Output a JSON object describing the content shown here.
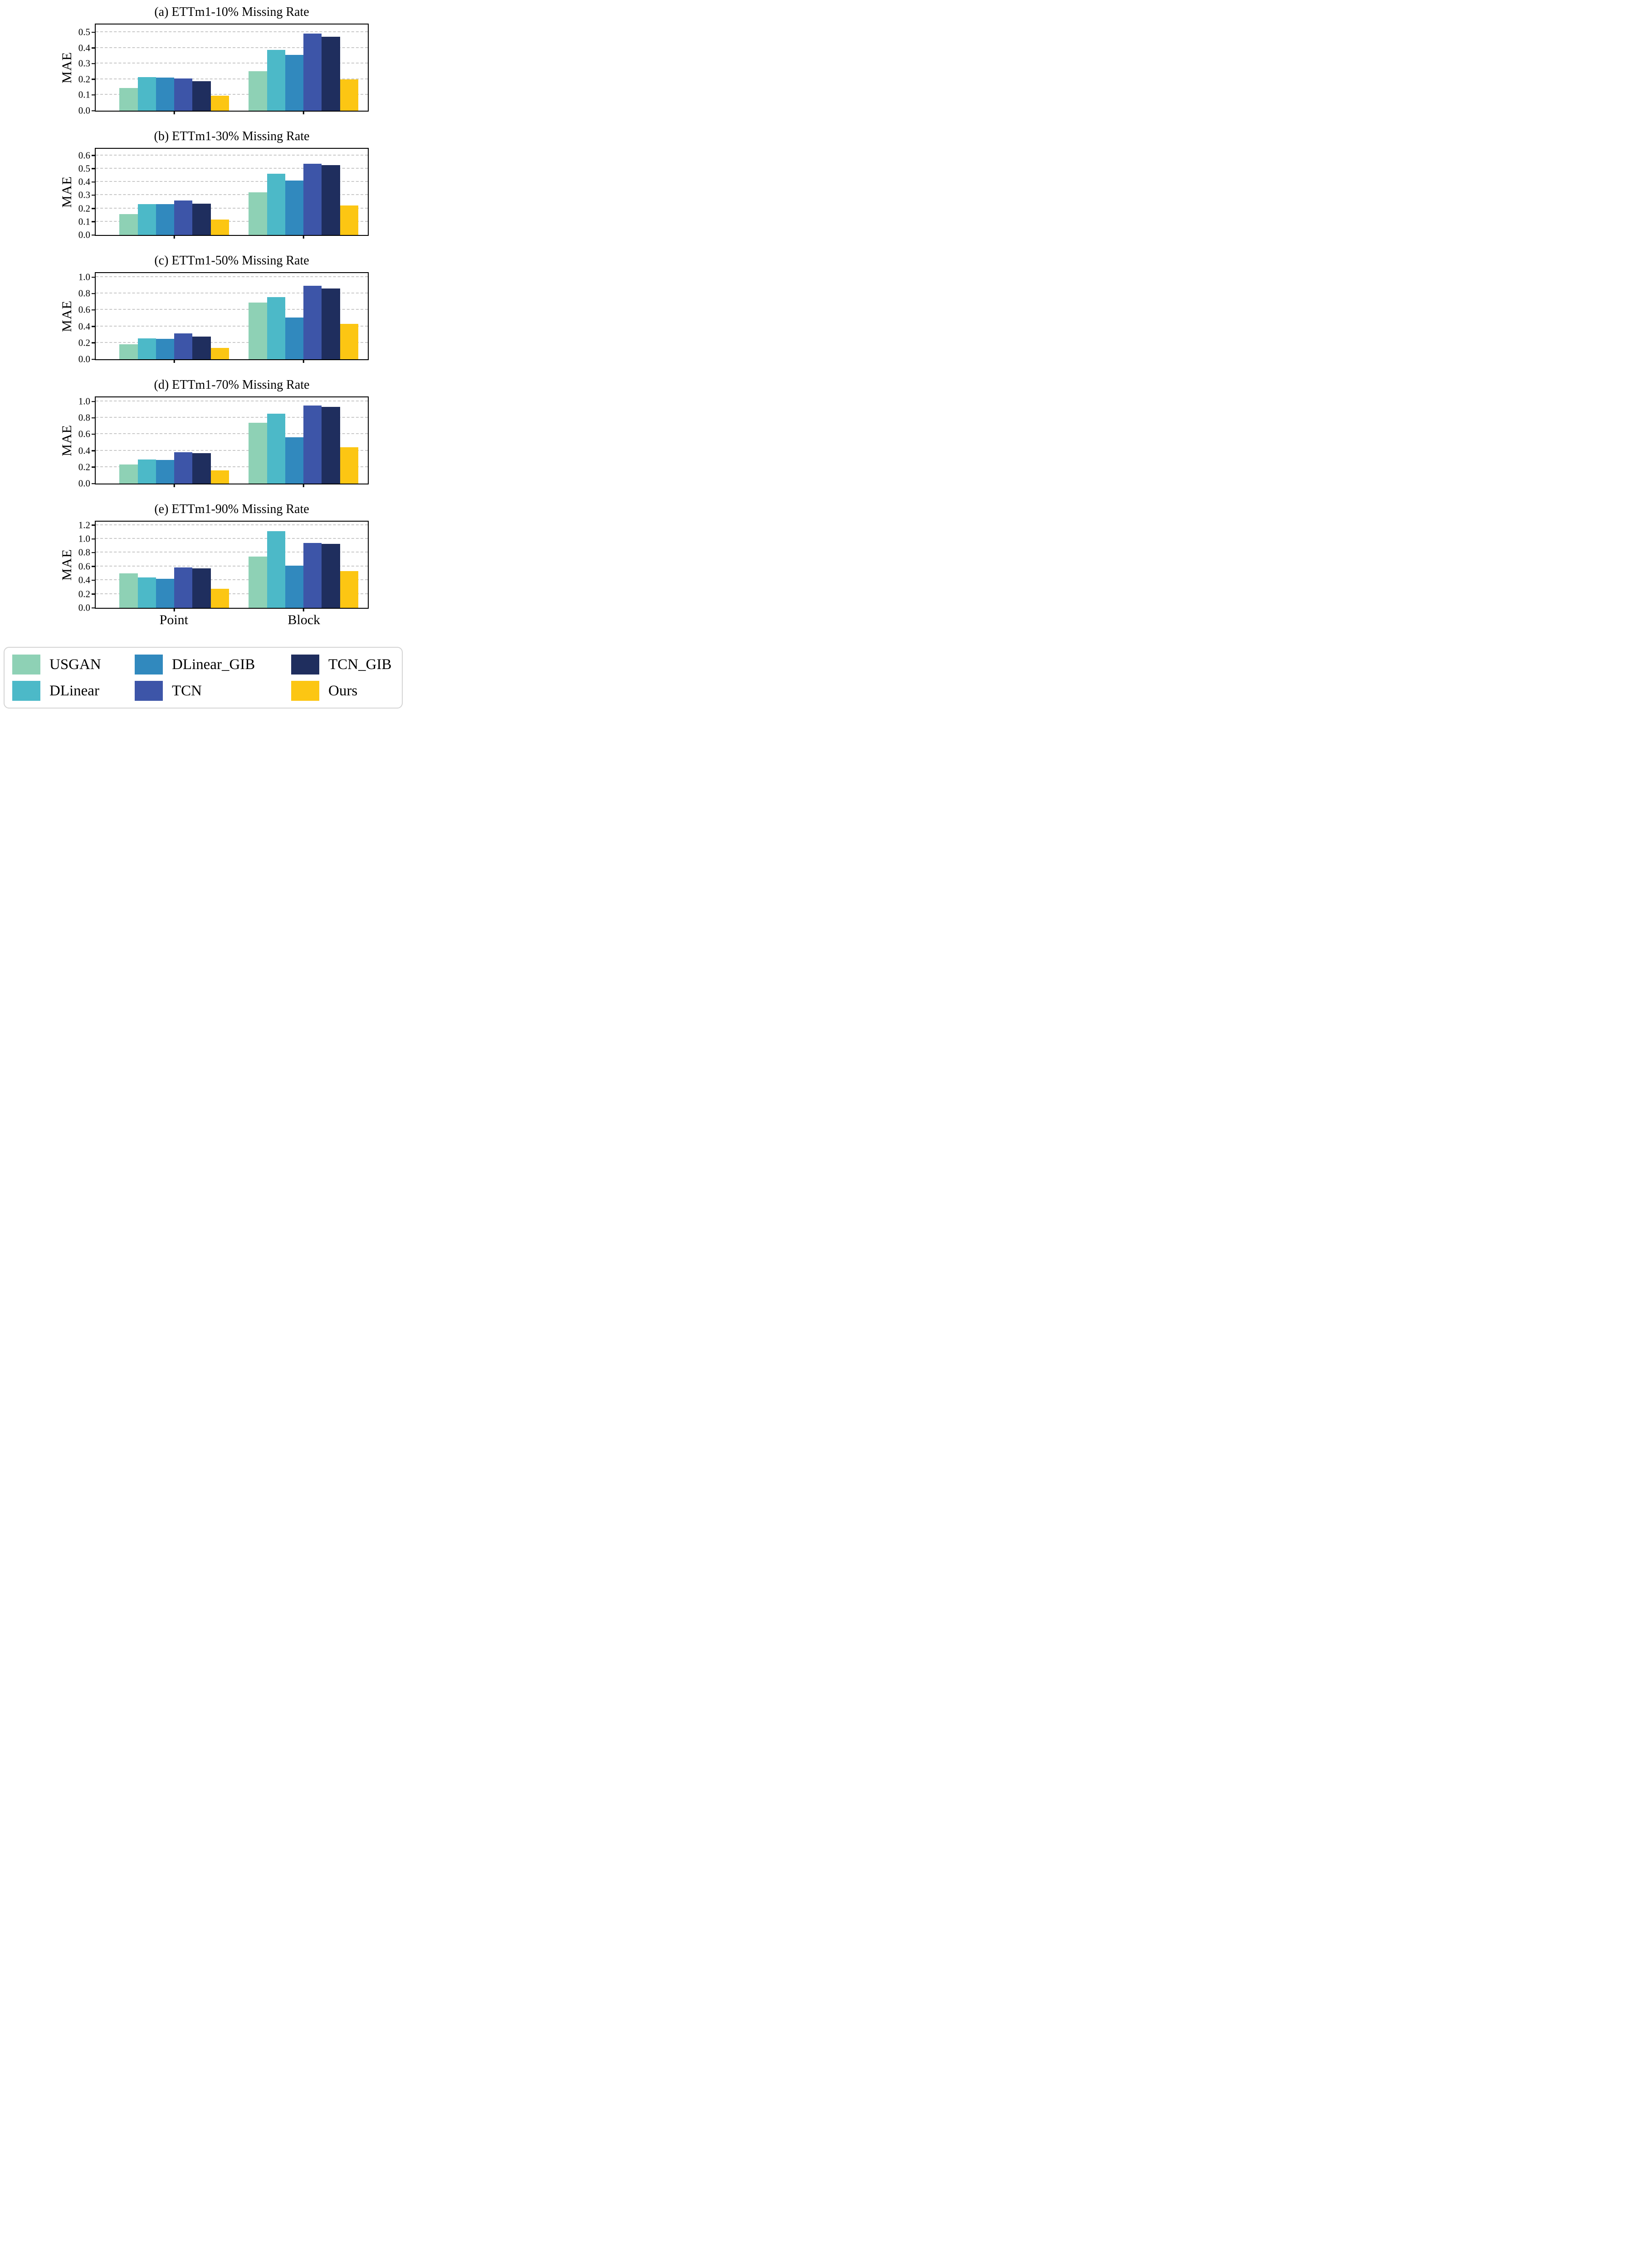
{
  "chart_data": [
    {
      "type": "bar",
      "title": "(a) ETTm1-10% Missing Rate",
      "ylabel": "MAE",
      "categories": [
        "Point",
        "Block"
      ],
      "yticks": [
        "0.0",
        "0.1",
        "0.2",
        "0.3",
        "0.4",
        "0.5"
      ],
      "ytick_values": [
        0,
        0.1,
        0.2,
        0.3,
        0.4,
        0.5
      ],
      "ylim": [
        0,
        0.55
      ],
      "grid": "horizontal-dashed",
      "legend_position": "none",
      "show_xtick_labels": false,
      "series": [
        {
          "name": "USGAN",
          "values": [
            0.145,
            0.252
          ]
        },
        {
          "name": "DLinear",
          "values": [
            0.215,
            0.389
          ]
        },
        {
          "name": "DLinear_GIB",
          "values": [
            0.211,
            0.356
          ]
        },
        {
          "name": "TCN",
          "values": [
            0.206,
            0.492
          ]
        },
        {
          "name": "TCN_GIB",
          "values": [
            0.189,
            0.471
          ]
        },
        {
          "name": "Ours",
          "values": [
            0.097,
            0.2
          ]
        }
      ]
    },
    {
      "type": "bar",
      "title": "(b) ETTm1-30% Missing Rate",
      "ylabel": "MAE",
      "categories": [
        "Point",
        "Block"
      ],
      "yticks": [
        "0.0",
        "0.1",
        "0.2",
        "0.3",
        "0.4",
        "0.5",
        "0.6"
      ],
      "ytick_values": [
        0,
        0.1,
        0.2,
        0.3,
        0.4,
        0.5,
        0.6
      ],
      "ylim": [
        0,
        0.65
      ],
      "grid": "horizontal-dashed",
      "legend_position": "none",
      "show_xtick_labels": false,
      "series": [
        {
          "name": "USGAN",
          "values": [
            0.159,
            0.32
          ]
        },
        {
          "name": "DLinear",
          "values": [
            0.233,
            0.461
          ]
        },
        {
          "name": "DLinear_GIB",
          "values": [
            0.232,
            0.41
          ]
        },
        {
          "name": "TCN",
          "values": [
            0.26,
            0.536
          ]
        },
        {
          "name": "TCN_GIB",
          "values": [
            0.236,
            0.527
          ]
        },
        {
          "name": "Ours",
          "values": [
            0.116,
            0.221
          ]
        }
      ]
    },
    {
      "type": "bar",
      "title": "(c) ETTm1-50% Missing Rate",
      "ylabel": "MAE",
      "categories": [
        "Point",
        "Block"
      ],
      "yticks": [
        "0.0",
        "0.2",
        "0.4",
        "0.6",
        "0.8",
        "1.0"
      ],
      "ytick_values": [
        0,
        0.2,
        0.4,
        0.6,
        0.8,
        1.0
      ],
      "ylim": [
        0,
        1.05
      ],
      "grid": "horizontal-dashed",
      "legend_position": "none",
      "show_xtick_labels": false,
      "series": [
        {
          "name": "USGAN",
          "values": [
            0.181,
            0.693
          ]
        },
        {
          "name": "DLinear",
          "values": [
            0.253,
            0.757
          ]
        },
        {
          "name": "DLinear_GIB",
          "values": [
            0.251,
            0.511
          ]
        },
        {
          "name": "TCN",
          "values": [
            0.315,
            0.897
          ]
        },
        {
          "name": "TCN_GIB",
          "values": [
            0.278,
            0.86
          ]
        },
        {
          "name": "Ours",
          "values": [
            0.136,
            0.429
          ]
        }
      ]
    },
    {
      "type": "bar",
      "title": "(d) ETTm1-70% Missing Rate",
      "ylabel": "MAE",
      "categories": [
        "Point",
        "Block"
      ],
      "yticks": [
        "0.0",
        "0.2",
        "0.4",
        "0.6",
        "0.8",
        "1.0"
      ],
      "ytick_values": [
        0,
        0.2,
        0.4,
        0.6,
        0.8,
        1.0
      ],
      "ylim": [
        0,
        1.05
      ],
      "grid": "horizontal-dashed",
      "legend_position": "none",
      "show_xtick_labels": false,
      "series": [
        {
          "name": "USGAN",
          "values": [
            0.23,
            0.739
          ]
        },
        {
          "name": "DLinear",
          "values": [
            0.291,
            0.851
          ]
        },
        {
          "name": "DLinear_GIB",
          "values": [
            0.286,
            0.564
          ]
        },
        {
          "name": "TCN",
          "values": [
            0.38,
            0.949
          ]
        },
        {
          "name": "TCN_GIB",
          "values": [
            0.37,
            0.934
          ]
        },
        {
          "name": "Ours",
          "values": [
            0.163,
            0.441
          ]
        }
      ]
    },
    {
      "type": "bar",
      "title": "(e) ETTm1-90% Missing Rate",
      "ylabel": "MAE",
      "categories": [
        "Point",
        "Block"
      ],
      "yticks": [
        "0.0",
        "0.2",
        "0.4",
        "0.6",
        "0.8",
        "1.0",
        "1.2"
      ],
      "ytick_values": [
        0,
        0.2,
        0.4,
        0.6,
        0.8,
        1.0,
        1.2
      ],
      "ylim": [
        0,
        1.25
      ],
      "grid": "horizontal-dashed",
      "legend_position": "none",
      "show_xtick_labels": true,
      "series": [
        {
          "name": "USGAN",
          "values": [
            0.503,
            0.745
          ]
        },
        {
          "name": "DLinear",
          "values": [
            0.44,
            1.112
          ]
        },
        {
          "name": "DLinear_GIB",
          "values": [
            0.419,
            0.614
          ]
        },
        {
          "name": "TCN",
          "values": [
            0.584,
            0.941
          ]
        },
        {
          "name": "TCN_GIB",
          "values": [
            0.57,
            0.928
          ]
        },
        {
          "name": "Ours",
          "values": [
            0.274,
            0.531
          ]
        }
      ]
    }
  ],
  "series_colors": {
    "USGAN": "#8ed1b5",
    "DLinear": "#4cb9c8",
    "DLinear_GIB": "#3189be",
    "TCN": "#3d55a8",
    "TCN_GIB": "#1f2e5e",
    "Ours": "#fcc613"
  },
  "legend": {
    "entries": [
      {
        "label": "USGAN",
        "color": "#8ed1b5"
      },
      {
        "label": "DLinear",
        "color": "#4cb9c8"
      },
      {
        "label": "DLinear_GIB",
        "color": "#3189be"
      },
      {
        "label": "TCN",
        "color": "#3d55a8"
      },
      {
        "label": "TCN_GIB",
        "color": "#1f2e5e"
      },
      {
        "label": "Ours",
        "color": "#fcc613"
      }
    ],
    "columns": [
      [
        0,
        1
      ],
      [
        2,
        3
      ],
      [
        4,
        5
      ]
    ]
  }
}
